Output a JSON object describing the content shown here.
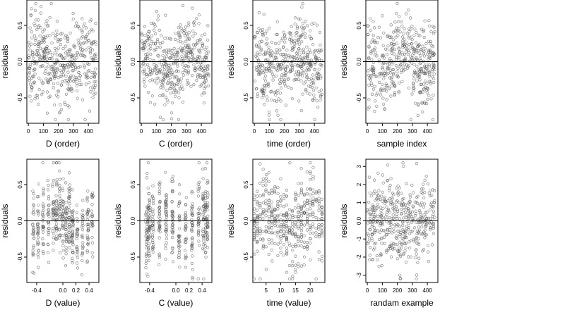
{
  "figure": {
    "background": "#ffffff",
    "point_color": "#555555",
    "line_color": "#000000"
  },
  "chart_data": [
    {
      "type": "scatter",
      "xlabel": "D (order)",
      "ylabel": "residuals",
      "xticks": [
        0,
        100,
        200,
        300,
        400
      ],
      "xlim": [
        -10,
        470
      ],
      "yticks": [
        -0.5,
        0.0,
        0.5
      ],
      "ylim": [
        -0.85,
        0.85
      ],
      "n": 450,
      "y_range": [
        -0.8,
        0.8
      ],
      "x_range": [
        0,
        450
      ],
      "hline": 0
    },
    {
      "type": "scatter",
      "xlabel": "C (order)",
      "ylabel": "residuals",
      "xticks": [
        0,
        100,
        200,
        300,
        400
      ],
      "xlim": [
        -10,
        470
      ],
      "yticks": [
        -0.5,
        0.0,
        0.5
      ],
      "ylim": [
        -0.85,
        0.85
      ],
      "n": 450,
      "y_range": [
        -0.8,
        0.8
      ],
      "x_range": [
        0,
        450
      ],
      "hline": 0
    },
    {
      "type": "scatter",
      "xlabel": "time (order)",
      "ylabel": "residuals",
      "xticks": [
        0,
        100,
        200,
        300,
        400
      ],
      "xlim": [
        -10,
        470
      ],
      "yticks": [
        -0.5,
        0.0,
        0.5
      ],
      "ylim": [
        -0.85,
        0.85
      ],
      "n": 450,
      "y_range": [
        -0.8,
        0.8
      ],
      "x_range": [
        0,
        450
      ],
      "hline": 0
    },
    {
      "type": "scatter",
      "xlabel": "sample index",
      "ylabel": "residuals",
      "xticks": [
        0,
        100,
        200,
        300,
        400
      ],
      "xlim": [
        -10,
        470
      ],
      "yticks": [
        -0.5,
        0.0,
        0.5
      ],
      "ylim": [
        -0.85,
        0.85
      ],
      "n": 450,
      "y_range": [
        -0.8,
        0.8
      ],
      "x_range": [
        0,
        450
      ],
      "hline": 0
    },
    {
      "type": "scatter",
      "xlabel": "D (value)",
      "ylabel": "residuals",
      "xticks": [
        -0.4,
        0.0,
        0.2,
        0.4
      ],
      "xtick_labels": [
        "-0.4",
        "0.0",
        "0.2",
        "0.4"
      ],
      "xlim": [
        -0.55,
        0.55
      ],
      "yticks": [
        -0.5,
        0.0,
        0.5
      ],
      "ylim": [
        -0.85,
        0.85
      ],
      "n": 450,
      "y_range": [
        -0.8,
        0.8
      ],
      "x_range": [
        -0.5,
        0.5
      ],
      "hline": 0
    },
    {
      "type": "scatter",
      "xlabel": "C (value)",
      "ylabel": "residuals",
      "xticks": [
        -0.4,
        0.0,
        0.2,
        0.4
      ],
      "xtick_labels": [
        "-0.4",
        "0.0",
        "0.2",
        "0.4"
      ],
      "xlim": [
        -0.55,
        0.55
      ],
      "yticks": [
        -0.5,
        0.0,
        0.5
      ],
      "ylim": [
        -0.85,
        0.85
      ],
      "n": 450,
      "y_range": [
        -0.8,
        0.8
      ],
      "x_range": [
        -0.45,
        0.5
      ],
      "hline": 0
    },
    {
      "type": "scatter",
      "xlabel": "time (value)",
      "ylabel": "residuals",
      "xticks": [
        5,
        10,
        15,
        20
      ],
      "xlim": [
        0.5,
        25
      ],
      "yticks": [
        -0.5,
        0.0,
        0.5
      ],
      "ylim": [
        -0.85,
        0.85
      ],
      "n": 450,
      "y_range": [
        -0.8,
        0.8
      ],
      "x_range": [
        1,
        24
      ],
      "hline": 0
    },
    {
      "type": "scatter",
      "xlabel": "randam example",
      "ylabel": "residuals",
      "xticks": [
        0,
        100,
        200,
        300,
        400
      ],
      "xlim": [
        -10,
        470
      ],
      "yticks": [
        -3,
        -2,
        -1,
        0,
        1,
        2,
        3
      ],
      "ylim": [
        -3.4,
        3.4
      ],
      "n": 450,
      "y_range": [
        -3.2,
        3.2
      ],
      "x_range": [
        0,
        450
      ],
      "hline": 0
    }
  ]
}
